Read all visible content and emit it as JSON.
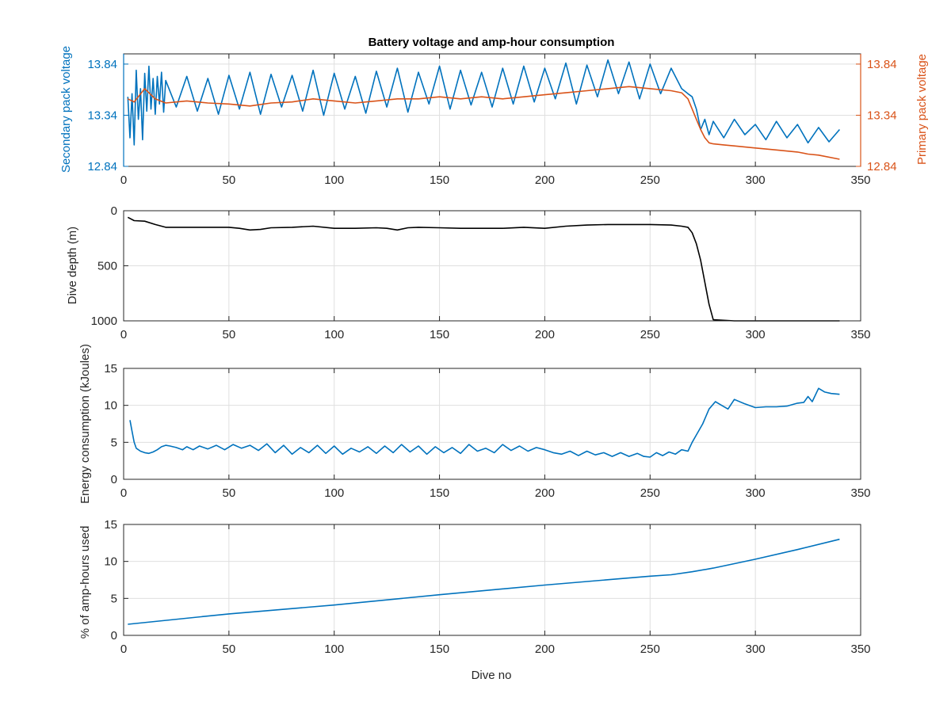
{
  "chart_data": [
    {
      "type": "line",
      "title": "Battery voltage and amp-hour consumption",
      "xlabel": "",
      "ylabel_left": "Secondary pack voltage",
      "ylabel_right": "Primary pack voltage",
      "xlim": [
        0,
        350
      ],
      "ylim": [
        12.84,
        13.94
      ],
      "xticks": [
        "0",
        "50",
        "100",
        "150",
        "200",
        "250",
        "300",
        "350"
      ],
      "yticks_left": [
        "12.84",
        "13.34",
        "13.84"
      ],
      "yticks_right": [
        "12.84",
        "13.34",
        "13.84"
      ],
      "grid": true,
      "left_color": "#0072bd",
      "right_color": "#d95319",
      "series": [
        {
          "axis": "left",
          "color": "#0072bd",
          "x": [
            2,
            3,
            4,
            5,
            6,
            7,
            8,
            9,
            10,
            11,
            12,
            13,
            14,
            15,
            16,
            17,
            18,
            19,
            20,
            25,
            30,
            35,
            40,
            45,
            50,
            55,
            60,
            65,
            70,
            75,
            80,
            85,
            90,
            95,
            100,
            105,
            110,
            115,
            120,
            125,
            130,
            135,
            140,
            145,
            150,
            155,
            160,
            165,
            170,
            175,
            180,
            185,
            190,
            195,
            200,
            205,
            210,
            215,
            220,
            225,
            230,
            235,
            240,
            245,
            250,
            255,
            260,
            265,
            268,
            270,
            272,
            274,
            276,
            278,
            280,
            285,
            290,
            295,
            300,
            305,
            310,
            315,
            320,
            325,
            330,
            335,
            340
          ],
          "y": [
            13.52,
            13.12,
            13.55,
            13.05,
            13.78,
            13.3,
            13.6,
            13.1,
            13.75,
            13.38,
            13.82,
            13.4,
            13.7,
            13.35,
            13.72,
            13.45,
            13.76,
            13.37,
            13.68,
            13.42,
            13.72,
            13.38,
            13.7,
            13.35,
            13.73,
            13.4,
            13.76,
            13.35,
            13.74,
            13.42,
            13.73,
            13.38,
            13.78,
            13.34,
            13.75,
            13.4,
            13.72,
            13.36,
            13.77,
            13.42,
            13.8,
            13.37,
            13.76,
            13.45,
            13.82,
            13.4,
            13.78,
            13.44,
            13.76,
            13.42,
            13.8,
            13.45,
            13.82,
            13.47,
            13.8,
            13.5,
            13.85,
            13.45,
            13.83,
            13.52,
            13.88,
            13.55,
            13.86,
            13.5,
            13.84,
            13.55,
            13.8,
            13.6,
            13.55,
            13.52,
            13.4,
            13.2,
            13.3,
            13.15,
            13.28,
            13.12,
            13.3,
            13.15,
            13.25,
            13.1,
            13.28,
            13.12,
            13.25,
            13.07,
            13.22,
            13.08,
            13.2
          ]
        },
        {
          "axis": "right",
          "color": "#d95319",
          "x": [
            2,
            5,
            10,
            15,
            20,
            30,
            40,
            50,
            60,
            70,
            80,
            90,
            100,
            110,
            120,
            130,
            140,
            150,
            160,
            170,
            180,
            190,
            200,
            210,
            220,
            230,
            240,
            250,
            260,
            265,
            268,
            270,
            272,
            274,
            276,
            278,
            280,
            285,
            290,
            300,
            310,
            320,
            325,
            330,
            340
          ],
          "y": [
            13.5,
            13.47,
            13.6,
            13.5,
            13.46,
            13.48,
            13.46,
            13.45,
            13.43,
            13.46,
            13.47,
            13.5,
            13.48,
            13.46,
            13.48,
            13.5,
            13.5,
            13.52,
            13.5,
            13.52,
            13.5,
            13.52,
            13.54,
            13.56,
            13.58,
            13.6,
            13.62,
            13.6,
            13.58,
            13.56,
            13.5,
            13.4,
            13.3,
            13.2,
            13.12,
            13.07,
            13.06,
            13.05,
            13.04,
            13.02,
            13.0,
            12.98,
            12.96,
            12.95,
            12.91
          ]
        }
      ]
    },
    {
      "type": "line",
      "title": "",
      "xlabel": "",
      "ylabel": "Dive depth (m)",
      "xlim": [
        0,
        350
      ],
      "ylim": [
        0,
        1000
      ],
      "y_reversed": true,
      "xticks": [
        "0",
        "50",
        "100",
        "150",
        "200",
        "250",
        "300",
        "350"
      ],
      "yticks": [
        "0",
        "500",
        "1000"
      ],
      "grid": true,
      "series": [
        {
          "color": "#000000",
          "x": [
            2,
            5,
            10,
            15,
            20,
            30,
            40,
            50,
            55,
            60,
            65,
            70,
            80,
            90,
            100,
            110,
            120,
            125,
            130,
            135,
            140,
            150,
            160,
            170,
            180,
            190,
            200,
            210,
            220,
            230,
            240,
            250,
            260,
            265,
            268,
            270,
            272,
            274,
            276,
            278,
            280,
            290,
            300,
            310,
            320,
            330,
            340
          ],
          "y": [
            60,
            90,
            95,
            125,
            150,
            150,
            150,
            150,
            160,
            175,
            170,
            155,
            150,
            140,
            160,
            160,
            155,
            160,
            175,
            155,
            150,
            155,
            160,
            160,
            160,
            150,
            160,
            140,
            130,
            125,
            125,
            125,
            130,
            140,
            150,
            200,
            300,
            450,
            650,
            850,
            990,
            1000,
            1000,
            1000,
            1000,
            1000,
            1005
          ]
        }
      ]
    },
    {
      "type": "line",
      "title": "",
      "xlabel": "",
      "ylabel": "Energy consumption (kJoules)",
      "xlim": [
        0,
        350
      ],
      "ylim": [
        0,
        15
      ],
      "xticks": [
        "0",
        "50",
        "100",
        "150",
        "200",
        "250",
        "300",
        "350"
      ],
      "yticks": [
        "0",
        "5",
        "10",
        "15"
      ],
      "grid": true,
      "series": [
        {
          "color": "#0072bd",
          "x": [
            3,
            4,
            5,
            6,
            8,
            10,
            12,
            14,
            16,
            18,
            20,
            22,
            25,
            28,
            30,
            33,
            36,
            40,
            44,
            48,
            52,
            56,
            60,
            64,
            68,
            72,
            76,
            80,
            84,
            88,
            92,
            96,
            100,
            104,
            108,
            112,
            116,
            120,
            124,
            128,
            132,
            136,
            140,
            144,
            148,
            152,
            156,
            160,
            164,
            168,
            172,
            176,
            180,
            184,
            188,
            192,
            196,
            200,
            204,
            208,
            212,
            216,
            220,
            224,
            228,
            232,
            236,
            240,
            244,
            247,
            250,
            253,
            256,
            259,
            262,
            265,
            268,
            270,
            272,
            275,
            278,
            281,
            284,
            287,
            290,
            295,
            300,
            305,
            310,
            315,
            320,
            323,
            325,
            327,
            330,
            333,
            336,
            340
          ],
          "y": [
            8.0,
            6.5,
            5.0,
            4.2,
            3.8,
            3.6,
            3.5,
            3.7,
            4.0,
            4.4,
            4.6,
            4.5,
            4.3,
            4.0,
            4.4,
            4.0,
            4.5,
            4.1,
            4.6,
            4.0,
            4.7,
            4.2,
            4.6,
            3.9,
            4.8,
            3.6,
            4.6,
            3.4,
            4.3,
            3.6,
            4.6,
            3.5,
            4.5,
            3.4,
            4.2,
            3.7,
            4.4,
            3.5,
            4.5,
            3.6,
            4.7,
            3.7,
            4.5,
            3.4,
            4.4,
            3.6,
            4.3,
            3.5,
            4.7,
            3.8,
            4.2,
            3.6,
            4.7,
            3.9,
            4.5,
            3.8,
            4.3,
            4.0,
            3.6,
            3.4,
            3.8,
            3.2,
            3.8,
            3.3,
            3.6,
            3.1,
            3.6,
            3.1,
            3.5,
            3.1,
            3.0,
            3.6,
            3.2,
            3.7,
            3.4,
            4.0,
            3.8,
            5.0,
            6.0,
            7.5,
            9.5,
            10.5,
            10.0,
            9.5,
            10.8,
            10.2,
            9.7,
            9.8,
            9.8,
            9.9,
            10.3,
            10.4,
            11.2,
            10.5,
            12.3,
            11.8,
            11.6,
            11.5
          ]
        }
      ]
    },
    {
      "type": "line",
      "title": "",
      "xlabel": "Dive no",
      "ylabel": "% of amp-hours used",
      "xlim": [
        0,
        350
      ],
      "ylim": [
        0,
        15
      ],
      "xticks": [
        "0",
        "50",
        "100",
        "150",
        "200",
        "250",
        "300",
        "350"
      ],
      "yticks": [
        "0",
        "5",
        "10",
        "15"
      ],
      "grid": true,
      "series": [
        {
          "color": "#0072bd",
          "x": [
            2,
            50,
            100,
            150,
            200,
            250,
            260,
            270,
            280,
            290,
            300,
            320,
            340
          ],
          "y": [
            1.5,
            2.9,
            4.1,
            5.5,
            6.8,
            8.0,
            8.2,
            8.6,
            9.1,
            9.7,
            10.3,
            11.6,
            13.0
          ]
        }
      ]
    }
  ]
}
